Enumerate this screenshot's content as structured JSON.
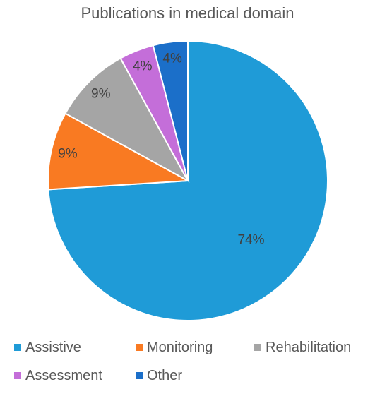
{
  "chart_data": {
    "type": "pie",
    "title": "Publications in medical domain",
    "slices": [
      {
        "name": "Assistive",
        "value": 74,
        "label": "74%",
        "color": "#1F9BD7"
      },
      {
        "name": "Monitoring",
        "value": 9,
        "label": "9%",
        "color": "#F97A22"
      },
      {
        "name": "Rehabilitation",
        "value": 9,
        "label": "9%",
        "color": "#A5A5A5"
      },
      {
        "name": "Assessment",
        "value": 4,
        "label": "4%",
        "color": "#C46ED9"
      },
      {
        "name": "Other",
        "value": 4,
        "label": "4%",
        "color": "#1B6FC9"
      }
    ],
    "legend_position": "bottom"
  }
}
